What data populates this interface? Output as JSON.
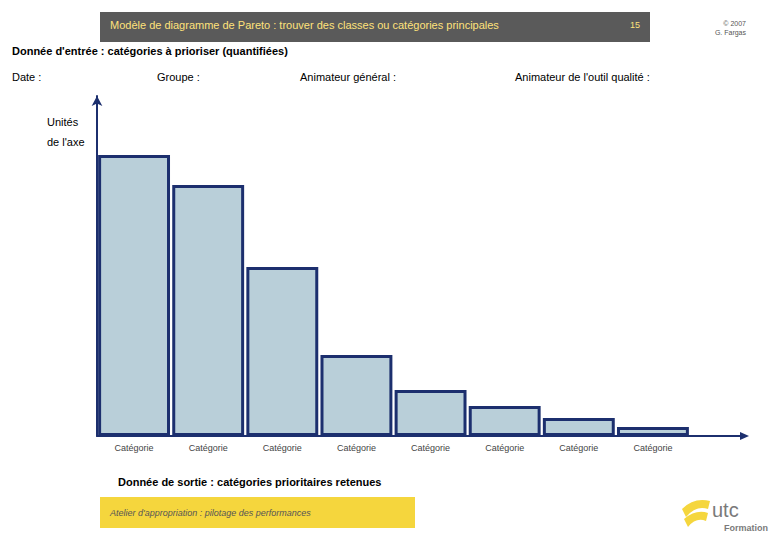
{
  "page": {
    "header": "Modèle de diagramme de Pareto : trouver des classes ou catégories principales",
    "page_number": "15",
    "copyright": [
      "© 2007",
      "G. Fargas"
    ],
    "input": "Donnée d'entrée : catégories à prioriser (quantifiées)",
    "fields": [
      "Date :",
      "Groupe :",
      "Animateur général :",
      "Animateur de l'outil qualité :"
    ],
    "output": "Donnée de sortie : catégories prioritaires retenues",
    "footer": "Atelier d'appropriation : pilotage des performances",
    "logo": [
      "utc",
      "Formation"
    ]
  },
  "chart_data": {
    "type": "bar",
    "y_label": [
      "Unités",
      "de l'axe"
    ],
    "categories": [
      "Catégorie",
      "Catégorie",
      "Catégorie",
      "Catégorie",
      "Catégorie",
      "Catégorie",
      "Catégorie",
      "Catégorie"
    ],
    "values": [
      281,
      251,
      169,
      81,
      46,
      30,
      18,
      9
    ],
    "color": "#b9cfd9",
    "ylim": [
      0,
      340
    ],
    "tick_labels": "x",
    "grid": false
  }
}
